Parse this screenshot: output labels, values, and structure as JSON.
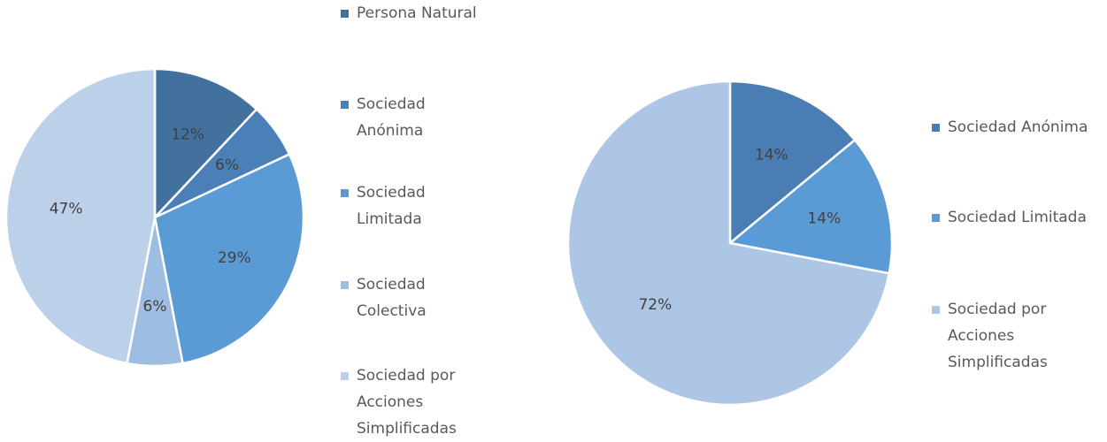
{
  "chart_data": [
    {
      "type": "pie",
      "categories": [
        "Persona Natural",
        "Sociedad Anónima",
        "Sociedad Limitada",
        "Sociedad Colectiva",
        "Sociedad por Acciones Simplificadas"
      ],
      "values": [
        12,
        6,
        29,
        6,
        47
      ],
      "value_labels": [
        "12%",
        "6%",
        "29%",
        "6%",
        "47%"
      ],
      "colors": [
        "#41719c",
        "#4a7fb8",
        "#5b9bd5",
        "#9dbde3",
        "#bdd0ea"
      ],
      "legend": "right"
    },
    {
      "type": "pie",
      "categories": [
        "Sociedad Anónima",
        "Sociedad Limitada",
        "Sociedad por Acciones Simplificadas"
      ],
      "values": [
        14,
        14,
        72
      ],
      "value_labels": [
        "14%",
        "14%",
        "72%"
      ],
      "colors": [
        "#4a7db4",
        "#5b9bd5",
        "#adc6e6"
      ],
      "legend": "right"
    }
  ]
}
